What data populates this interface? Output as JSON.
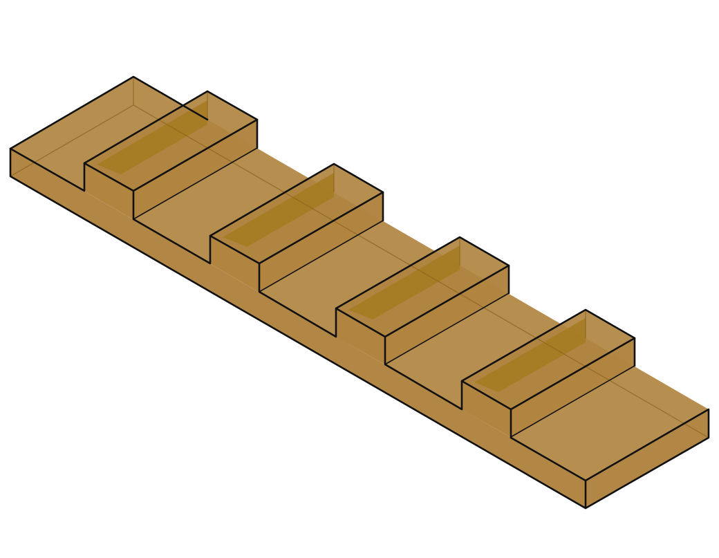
{
  "object": {
    "name": "stepped-bar",
    "ridge_count": 4
  },
  "colors": {
    "background": "#ffffff",
    "face": "#b08440",
    "inner": "#a57a20",
    "edge": "#111111",
    "hidden": "#8a6420"
  }
}
